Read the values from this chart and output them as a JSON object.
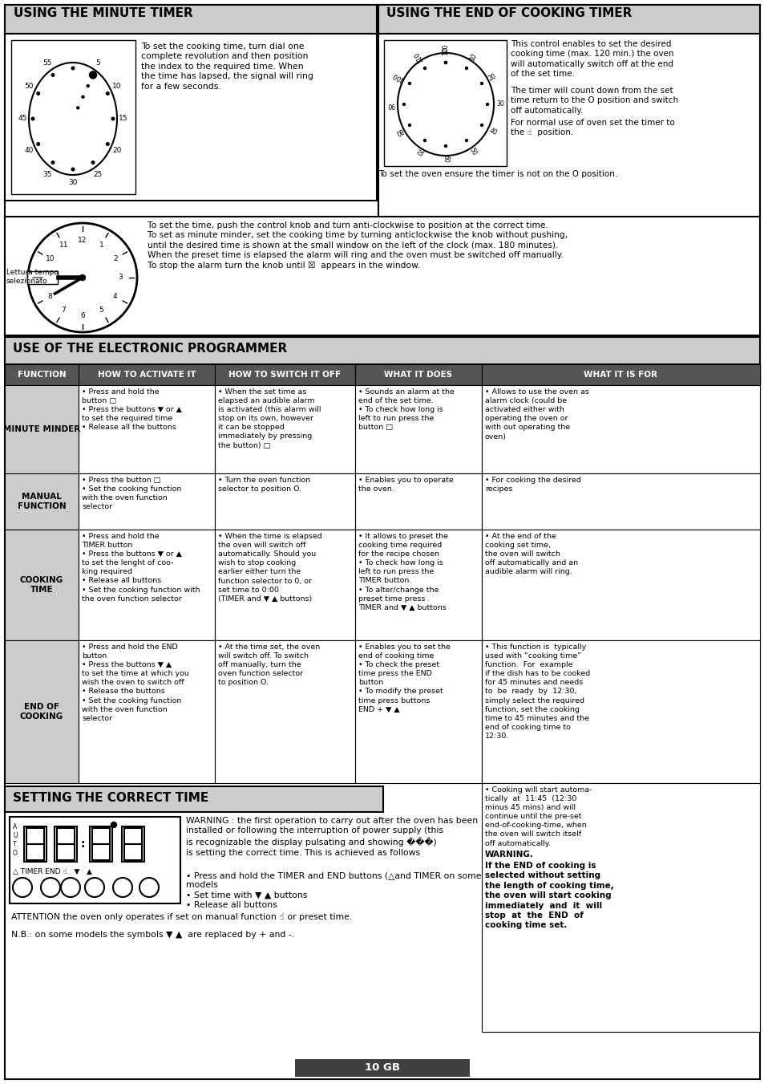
{
  "page_bg": "#ffffff",
  "header_bg": "#cccccc",
  "table_header_bg": "#555555",
  "row_func_bg": "#cccccc",
  "footer_bg": "#404040",
  "footer_text": "10 GB",
  "top_left_title": "USING THE MINUTE TIMER",
  "top_right_title": "USING THE END OF COOKING TIMER",
  "section2_title": "USE OF THE ELECTRONIC PROGRAMMER",
  "section3_title": "SETTING THE CORRECT TIME",
  "minute_timer_text": "To set the cooking time, turn dial one\ncomplete revolution and then position\nthe index to the required time. When\nthe time has lapsed, the signal will ring\nfor a few seconds.",
  "end_cooking_p1": "This control enables to set the desired\ncooking time (max. 120 min.) the oven\nwill automatically switch off at the end\nof the set time.",
  "end_cooking_p2": "The timer will count down from the set\ntime return to the O position and switch\noff automatically.",
  "end_cooking_p3": "For normal use of oven set the timer to\nthe ☝  position.",
  "end_cooking_footer": "To set the oven ensure the timer is not on the O position.",
  "clock_text": "To set the time, push the control knob and turn anti-clockwise to position at the correct time.\nTo set as minute minder, set the cooking time by turning anticlockwise the knob without pushing,\nuntil the desired time is shown at the small window on the left of the clock (max. 180 minutes).\nWhen the preset time is elapsed the alarm will ring and the oven must be switched off manually.\nTo stop the alarm turn the knob until ☒  appears in the window.",
  "lettura_label": "Lettura tempo\nselezionato",
  "table_headers": [
    "FUNCTION",
    "HOW TO ACTIVATE IT",
    "HOW TO SWITCH IT OFF",
    "WHAT IT DOES",
    "WHAT IT IS FOR"
  ],
  "row1_name": "MINUTE MINDER",
  "row1_c2": "• Press and hold the\nbutton □\n• Press the buttons ▼ or ▲\nto set the required time\n• Release all the buttons",
  "row1_c3": "• When the set time as\nelapsed an audible alarm\nis activated (this alarm will\nstop on its own, however\nit can be stopped\nimmediately by pressing\nthe button) □",
  "row1_c4": "• Sounds an alarm at the\nend of the set time.\n• To check how long is\nleft to run press the\nbutton □",
  "row1_c5": "• Allows to use the oven as\nalarm clock (could be\nactivated either with\noperating the oven or\nwith out operating the\noven)",
  "row2_name": "MANUAL\nFUNCTION",
  "row2_c2": "• Press the button □\n• Set the cooking function\nwith the oven function\nselector",
  "row2_c3": "• Turn the oven function\nselector to position O.",
  "row2_c4": "• Enables you to operate\nthe oven.",
  "row2_c5": "• For cooking the desired\nrecipes",
  "row3_name": "COOKING\nTIME",
  "row3_c2": "• Press and hold the\nTIMER button\n• Press the buttons ▼ or ▲\nto set the lenght of coo-\nking required\n• Release all buttons\n• Set the cooking function with\nthe oven function selector",
  "row3_c3": "• When the time is elapsed\nthe oven will switch off\nautomatically. Should you\nwish to stop cooking\nearlier either turn the\nfunction selector to 0, or\nset time to 0:00\n(TIMER and ▼ ▲ buttons)",
  "row3_c4": "• It allows to preset the\ncooking time required\nfor the recipe chosen\n• To check how long is\nleft to run press the\nTIMER button.\n• To alter/change the\npreset time press\nTIMER and ▼ ▲ buttons",
  "row3_c5": "• At the end of the\ncooking set time,\nthe oven will switch\noff automatically and an\naudible alarm will ring.",
  "row4_name": "END OF\nCOOKING",
  "row4_c2": "• Press and hold the END\nbutton\n• Press the buttons ▼ ▲\nto set the time at which you\nwish the oven to switch off\n• Release the buttons\n• Set the cooking function\nwith the oven function\nselector",
  "row4_c3": "• At the time set, the oven\nwill switch off. To switch\noff manually, turn the\noven function selector\nto position O.",
  "row4_c4": "• Enables you to set the\nend of cooking time\n• To check the preset\ntime press the END\nbutton\n• To modify the preset\ntime press buttons\nEND + ▼ ▲",
  "row4_c5": "• This function is  typically\nused with “cooking time”\nfunction.  For  example\nif the dish has to be cooked\nfor 45 minutes and needs\nto  be  ready  by  12:30,\nsimply select the required\nfunction, set the cooking\ntime to 45 minutes and the\nend of cooking time to\n12:30.",
  "row4_extra": "• Cooking will start automa-\ntically  at  11:45  (12:30\nminus 45 mins) and will\ncontinue until the pre-set\nend-of-cooking-time, when\nthe oven will switch itself\noff automatically.",
  "warning_title": "WARNING.",
  "warning_body": "If the END of cooking is\nselected without setting\nthe length of cooking time,\nthe oven will start cooking\nimmediately  and  it  will\nstop  at  the  END  of\ncooking time set.",
  "setting_warn": "WARNING : the first operation to carry out after the oven has been\ninstalled or following the interruption of power supply (this\nis recognizable the display pulsating and showing ���)\nis setting the correct time. This is achieved as follows",
  "setting_steps": "• Press and hold the TIMER and END buttons (△and TIMER on some\nmodels\n• Set time with ▼ ▲ buttons\n• Release all buttons",
  "attention": "ATTENTION the oven only operates if set on manual function ☝ or preset time.",
  "nb": "N.B.: on some models the symbols ▼ ▲  are replaced by + and -."
}
